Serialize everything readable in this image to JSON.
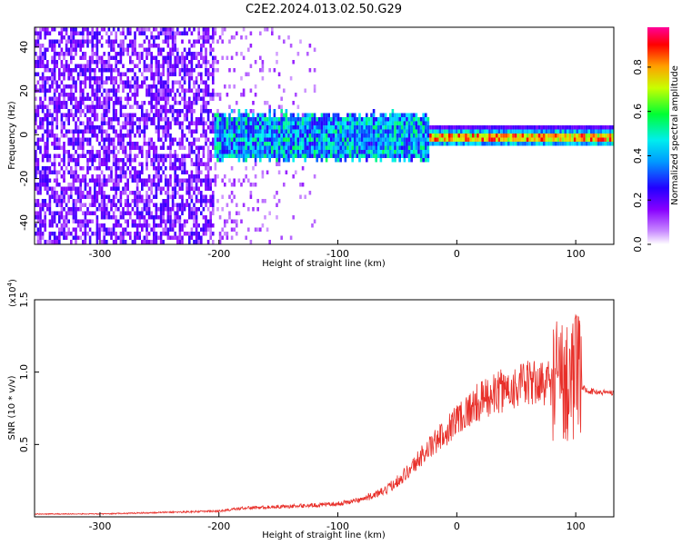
{
  "title": "C2E2.2024.013.02.50.G29",
  "chart_data": [
    {
      "type": "heatmap",
      "xlabel": "Height of straight line (km)",
      "ylabel": "Frequency (Hz)",
      "xlim": [
        -355,
        132
      ],
      "ylim": [
        -50,
        49
      ],
      "xticks": [
        -300,
        -200,
        -100,
        0,
        100
      ],
      "yticks": [
        -40,
        -20,
        0,
        20,
        40
      ],
      "colorbar": {
        "label": "Normalized spectral amplitude",
        "range": [
          0.0,
          0.98
        ],
        "ticks": [
          "0.0",
          "0.2",
          "0.4",
          "0.6",
          "0.8"
        ],
        "ticks_values": [
          0.0,
          0.2,
          0.4,
          0.6,
          0.8
        ]
      },
      "description_regions": [
        {
          "x_range": [
            -355,
            -205
          ],
          "freq_band": [
            -50,
            49
          ],
          "amplitude": 0.12
        },
        {
          "x_range": [
            -205,
            -25
          ],
          "freq_band": [
            -10,
            8
          ],
          "amplitude": 0.35
        },
        {
          "x_range": [
            -25,
            132
          ],
          "freq_band": [
            -2,
            3
          ],
          "amplitude": 0.75
        }
      ]
    },
    {
      "type": "line",
      "xlabel": "Height of straight line (km)",
      "ylabel": "SNR (10 * v/v)",
      "y_scale_label": "(x10",
      "y_scale_exponent": "4",
      "xlim": [
        -355,
        132
      ],
      "ylim": [
        0,
        1.5
      ],
      "xticks": [
        -300,
        -200,
        -100,
        0,
        100
      ],
      "yticks": [
        "0.5",
        "1.0",
        "1.5"
      ],
      "yticks_values": [
        0.5,
        1.0,
        1.5
      ],
      "color": "#e8302a",
      "series": [
        {
          "x": [
            -355,
            -300,
            -250,
            -200,
            -180,
            -150,
            -120,
            -100,
            -80,
            -60,
            -50,
            -40,
            -30,
            -20,
            -10,
            0,
            20,
            40,
            60,
            80,
            90,
            95,
            100,
            105,
            110,
            120,
            132
          ],
          "values": [
            0.02,
            0.02,
            0.03,
            0.04,
            0.06,
            0.07,
            0.08,
            0.09,
            0.12,
            0.18,
            0.25,
            0.32,
            0.42,
            0.5,
            0.58,
            0.68,
            0.8,
            0.88,
            0.92,
            0.93,
            0.95,
            0.97,
            0.98,
            0.9,
            0.87,
            0.86,
            0.86
          ]
        }
      ]
    }
  ],
  "colors": {
    "colormap": [
      "#ffffff",
      "#8800ff",
      "#2200ff",
      "#0066ff",
      "#00eeff",
      "#00ff44",
      "#c8ff00",
      "#ffa000",
      "#ff0000",
      "#ff0099"
    ]
  }
}
